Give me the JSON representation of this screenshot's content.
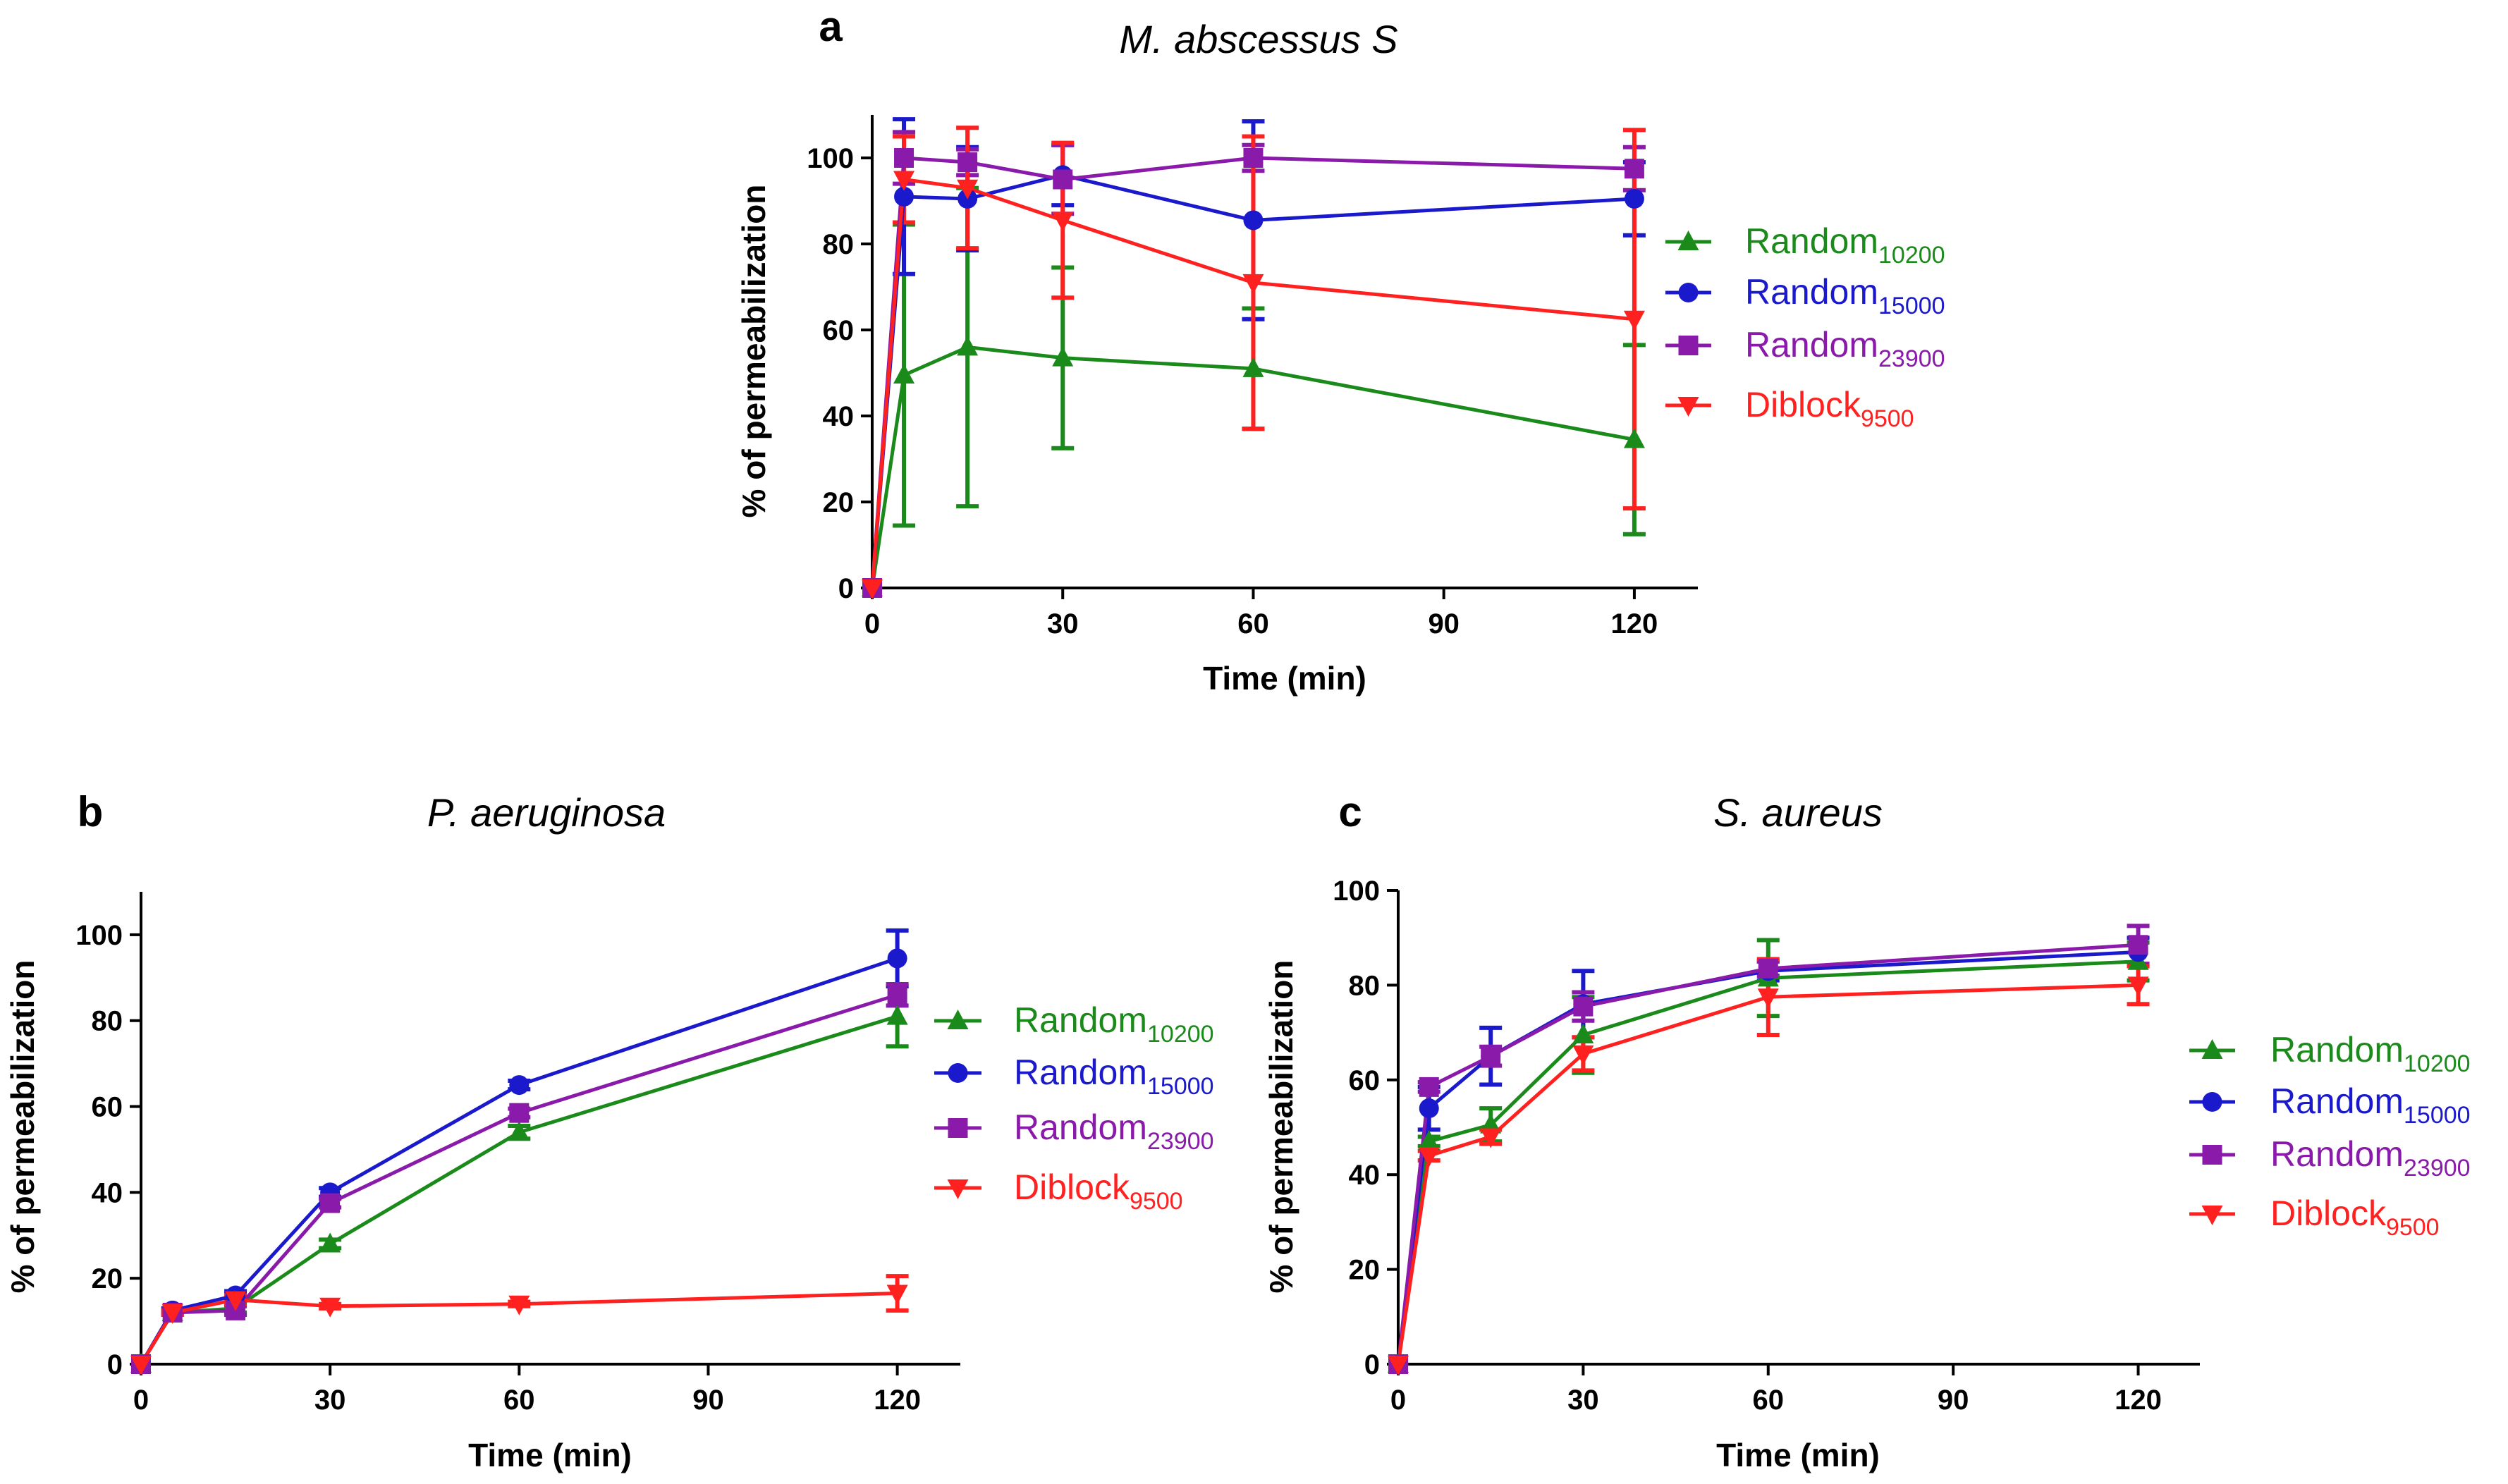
{
  "colors": {
    "random10200": "#1a8a1a",
    "random15000": "#1a1acc",
    "random23900": "#8a1aaa",
    "diblock9500": "#ff2020",
    "axis": "#000000"
  },
  "chart_data": [
    {
      "panel": "a",
      "title": "M. abscessus S",
      "type": "line",
      "xlabel": "Time (min)",
      "ylabel": "% of permeabilization",
      "xlim": [
        0,
        130
      ],
      "ylim": [
        0,
        110
      ],
      "xticks": [
        0,
        30,
        60,
        90,
        120
      ],
      "yticks": [
        0,
        20,
        40,
        60,
        80,
        100
      ],
      "legend_position": "right",
      "x": [
        0,
        5,
        15,
        30,
        60,
        120
      ],
      "series": [
        {
          "key": "random10200",
          "name": "Random",
          "sub": "10200",
          "marker": "triangle-up",
          "values": [
            0,
            49.5,
            56,
            53.5,
            51,
            34.5
          ],
          "errors": [
            0,
            35,
            37,
            21,
            14,
            22
          ]
        },
        {
          "key": "random15000",
          "name": "Random",
          "sub": "15000",
          "marker": "circle",
          "values": [
            0,
            91,
            90.5,
            96,
            85.5,
            90.5
          ],
          "errors": [
            0,
            18,
            12,
            7,
            23,
            8.5
          ]
        },
        {
          "key": "random23900",
          "name": "Random",
          "sub": "23900",
          "marker": "square",
          "values": [
            0,
            100,
            99,
            95,
            100,
            97.5
          ],
          "errors": [
            0,
            6,
            3,
            8,
            3,
            5
          ]
        },
        {
          "key": "diblock9500",
          "name": "Diblock",
          "sub": "9500",
          "marker": "triangle-down",
          "values": [
            0,
            95,
            93,
            85.5,
            71,
            62.5
          ],
          "errors": [
            0,
            10,
            14,
            18,
            34,
            44
          ]
        }
      ]
    },
    {
      "panel": "b",
      "title": "P. aeruginosa",
      "type": "line",
      "xlabel": "Time (min)",
      "ylabel": "% of permeabilization",
      "xlim": [
        0,
        130
      ],
      "ylim": [
        0,
        110
      ],
      "xticks": [
        0,
        30,
        60,
        90,
        120
      ],
      "yticks": [
        0,
        20,
        40,
        60,
        80,
        100
      ],
      "legend_position": "right",
      "x": [
        0,
        5,
        15,
        30,
        60,
        120
      ],
      "series": [
        {
          "key": "random10200",
          "name": "Random",
          "sub": "10200",
          "marker": "triangle-up",
          "values": [
            0,
            12,
            13,
            28,
            54,
            81
          ],
          "errors": [
            0,
            0.5,
            1,
            1,
            1.5,
            7
          ]
        },
        {
          "key": "random15000",
          "name": "Random",
          "sub": "15000",
          "marker": "circle",
          "values": [
            0,
            12.5,
            16,
            40,
            65,
            94.5
          ],
          "errors": [
            0,
            0.5,
            1,
            1,
            1,
            6.5
          ]
        },
        {
          "key": "random23900",
          "name": "Random",
          "sub": "23900",
          "marker": "square",
          "values": [
            0,
            12,
            12.5,
            37.5,
            58.5,
            86
          ],
          "errors": [
            0,
            0.5,
            1,
            1,
            1,
            2.5
          ]
        },
        {
          "key": "diblock9500",
          "name": "Diblock",
          "sub": "9500",
          "marker": "triangle-down",
          "values": [
            0,
            12,
            15,
            13.5,
            14,
            16.5
          ],
          "errors": [
            0,
            0.5,
            1,
            0.5,
            0.5,
            4
          ]
        }
      ]
    },
    {
      "panel": "c",
      "title": "S. aureus",
      "type": "line",
      "xlabel": "Time (min)",
      "ylabel": "% of permeabilization",
      "xlim": [
        0,
        130
      ],
      "ylim": [
        0,
        100
      ],
      "xticks": [
        0,
        30,
        60,
        90,
        120
      ],
      "yticks": [
        0,
        20,
        40,
        60,
        80,
        100
      ],
      "legend_position": "right",
      "x": [
        0,
        5,
        15,
        30,
        60,
        120
      ],
      "series": [
        {
          "key": "random10200",
          "name": "Random",
          "sub": "10200",
          "marker": "triangle-up",
          "values": [
            0,
            47,
            50.5,
            69.5,
            81.5,
            85
          ],
          "errors": [
            0,
            1,
            3.5,
            8,
            8,
            4
          ]
        },
        {
          "key": "random15000",
          "name": "Random",
          "sub": "15000",
          "marker": "circle",
          "values": [
            0,
            54,
            65,
            76,
            83,
            87
          ],
          "errors": [
            0,
            4.5,
            6,
            7,
            2,
            3
          ]
        },
        {
          "key": "random23900",
          "name": "Random",
          "sub": "23900",
          "marker": "square",
          "values": [
            0,
            58.5,
            65,
            75.5,
            83.5,
            88.5
          ],
          "errors": [
            0,
            1,
            2,
            3,
            1.5,
            4
          ]
        },
        {
          "key": "diblock9500",
          "name": "Diblock",
          "sub": "9500",
          "marker": "triangle-down",
          "values": [
            0,
            44,
            48,
            65.5,
            77.5,
            80
          ],
          "errors": [
            0,
            1,
            1.5,
            3.5,
            8,
            4
          ]
        }
      ]
    }
  ]
}
